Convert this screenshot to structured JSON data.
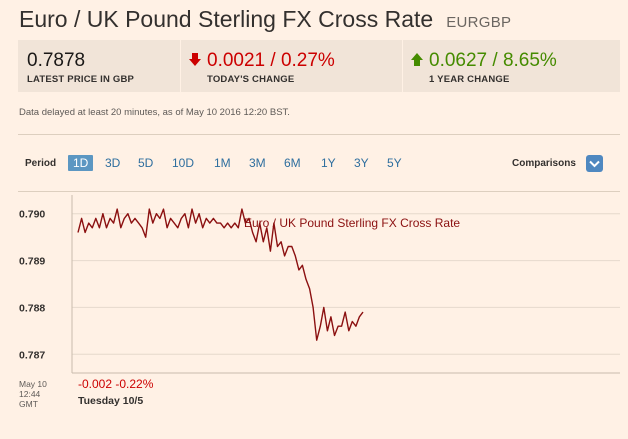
{
  "header": {
    "title": "Euro / UK Pound Sterling FX Cross Rate",
    "symbol": "EURGBP"
  },
  "stats": {
    "latest": {
      "value": "0.7878",
      "label": "LATEST PRICE IN GBP"
    },
    "today": {
      "value": "0.0021 / 0.27%",
      "label": "TODAY'S CHANGE",
      "direction": "down",
      "icon": "arrow-down-icon",
      "color": "#cc0000"
    },
    "year": {
      "value": "0.0627 / 8.65%",
      "label": "1 YEAR CHANGE",
      "direction": "up",
      "icon": "arrow-up-icon",
      "color": "#458b00"
    }
  },
  "delay_notice": "Data delayed at least 20 minutes, as of May 10 2016 12:20 BST.",
  "period": {
    "label": "Period",
    "tabs": [
      "1D",
      "3D",
      "5D",
      "10D",
      "1M",
      "3M",
      "6M",
      "1Y",
      "3Y",
      "5Y"
    ],
    "selected": "1D"
  },
  "comparisons": {
    "label": "Comparisons",
    "icon": "chevron-down-icon"
  },
  "chart_data": {
    "type": "line",
    "title": "Euro / UK Pound Sterling FX Cross Rate",
    "y_ticks": [
      "0.790",
      "0.789",
      "0.788",
      "0.787"
    ],
    "ylim": [
      0.7866,
      0.7904
    ],
    "grid": true,
    "color": "#8b1010",
    "series": [
      {
        "values": [
          0.7896,
          0.7899,
          0.7896,
          0.7898,
          0.7897,
          0.7899,
          0.7897,
          0.79,
          0.7897,
          0.7899,
          0.7898,
          0.7901,
          0.7897,
          0.7899,
          0.79,
          0.7898,
          0.7899,
          0.7898,
          0.7897,
          0.7895,
          0.7901,
          0.7898,
          0.79,
          0.7899,
          0.7901,
          0.7897,
          0.7899,
          0.7898,
          0.7897,
          0.7899,
          0.79,
          0.7897,
          0.7901,
          0.7898,
          0.79,
          0.7897,
          0.7899,
          0.7898,
          0.7899,
          0.7898,
          0.7898,
          0.7897,
          0.7898,
          0.7897,
          0.7898,
          0.7897,
          0.7901,
          0.7898,
          0.7899,
          0.7896,
          0.7894,
          0.7898,
          0.7894,
          0.7897,
          0.7892,
          0.7898,
          0.7893,
          0.7894,
          0.7891,
          0.7893,
          0.7893,
          0.7891,
          0.7888,
          0.7889,
          0.7886,
          0.7884,
          0.788,
          0.7873,
          0.7876,
          0.788,
          0.7875,
          0.7878,
          0.7874,
          0.7876,
          0.7876,
          0.7879,
          0.7875,
          0.7877,
          0.7876,
          0.7878,
          0.7879
        ]
      }
    ]
  },
  "footer": {
    "time_lines": [
      "May 10",
      "12:44",
      "GMT"
    ],
    "change": "-0.002 -0.22%",
    "date": "Tuesday 10/5"
  }
}
